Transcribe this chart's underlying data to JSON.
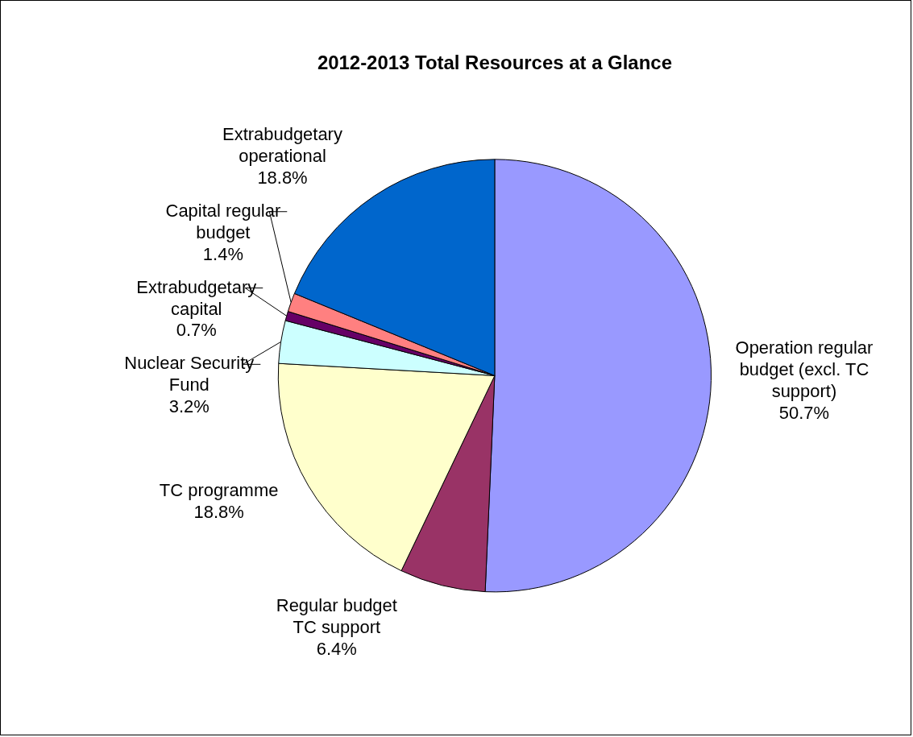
{
  "chart_data": {
    "type": "pie",
    "title": "2012-2013 Total Resources at a Glance",
    "categories": [
      "Operation regular budget (excl. TC support)",
      "Regular budget TC support",
      "TC programme",
      "Nuclear Security Fund",
      "Extrabudgetary capital",
      "Capital regular budget",
      "Extrabudgetary operational"
    ],
    "values": [
      50.7,
      6.4,
      18.8,
      3.2,
      0.7,
      1.4,
      18.8
    ],
    "value_labels": [
      "50.7%",
      "6.4%",
      "18.8%",
      "3.2%",
      "0.7%",
      "1.4%",
      "18.8%"
    ],
    "colors": [
      "#9999ff",
      "#993366",
      "#ffffcc",
      "#ccffff",
      "#660066",
      "#ff8080",
      "#0066cc"
    ],
    "legend": false
  }
}
